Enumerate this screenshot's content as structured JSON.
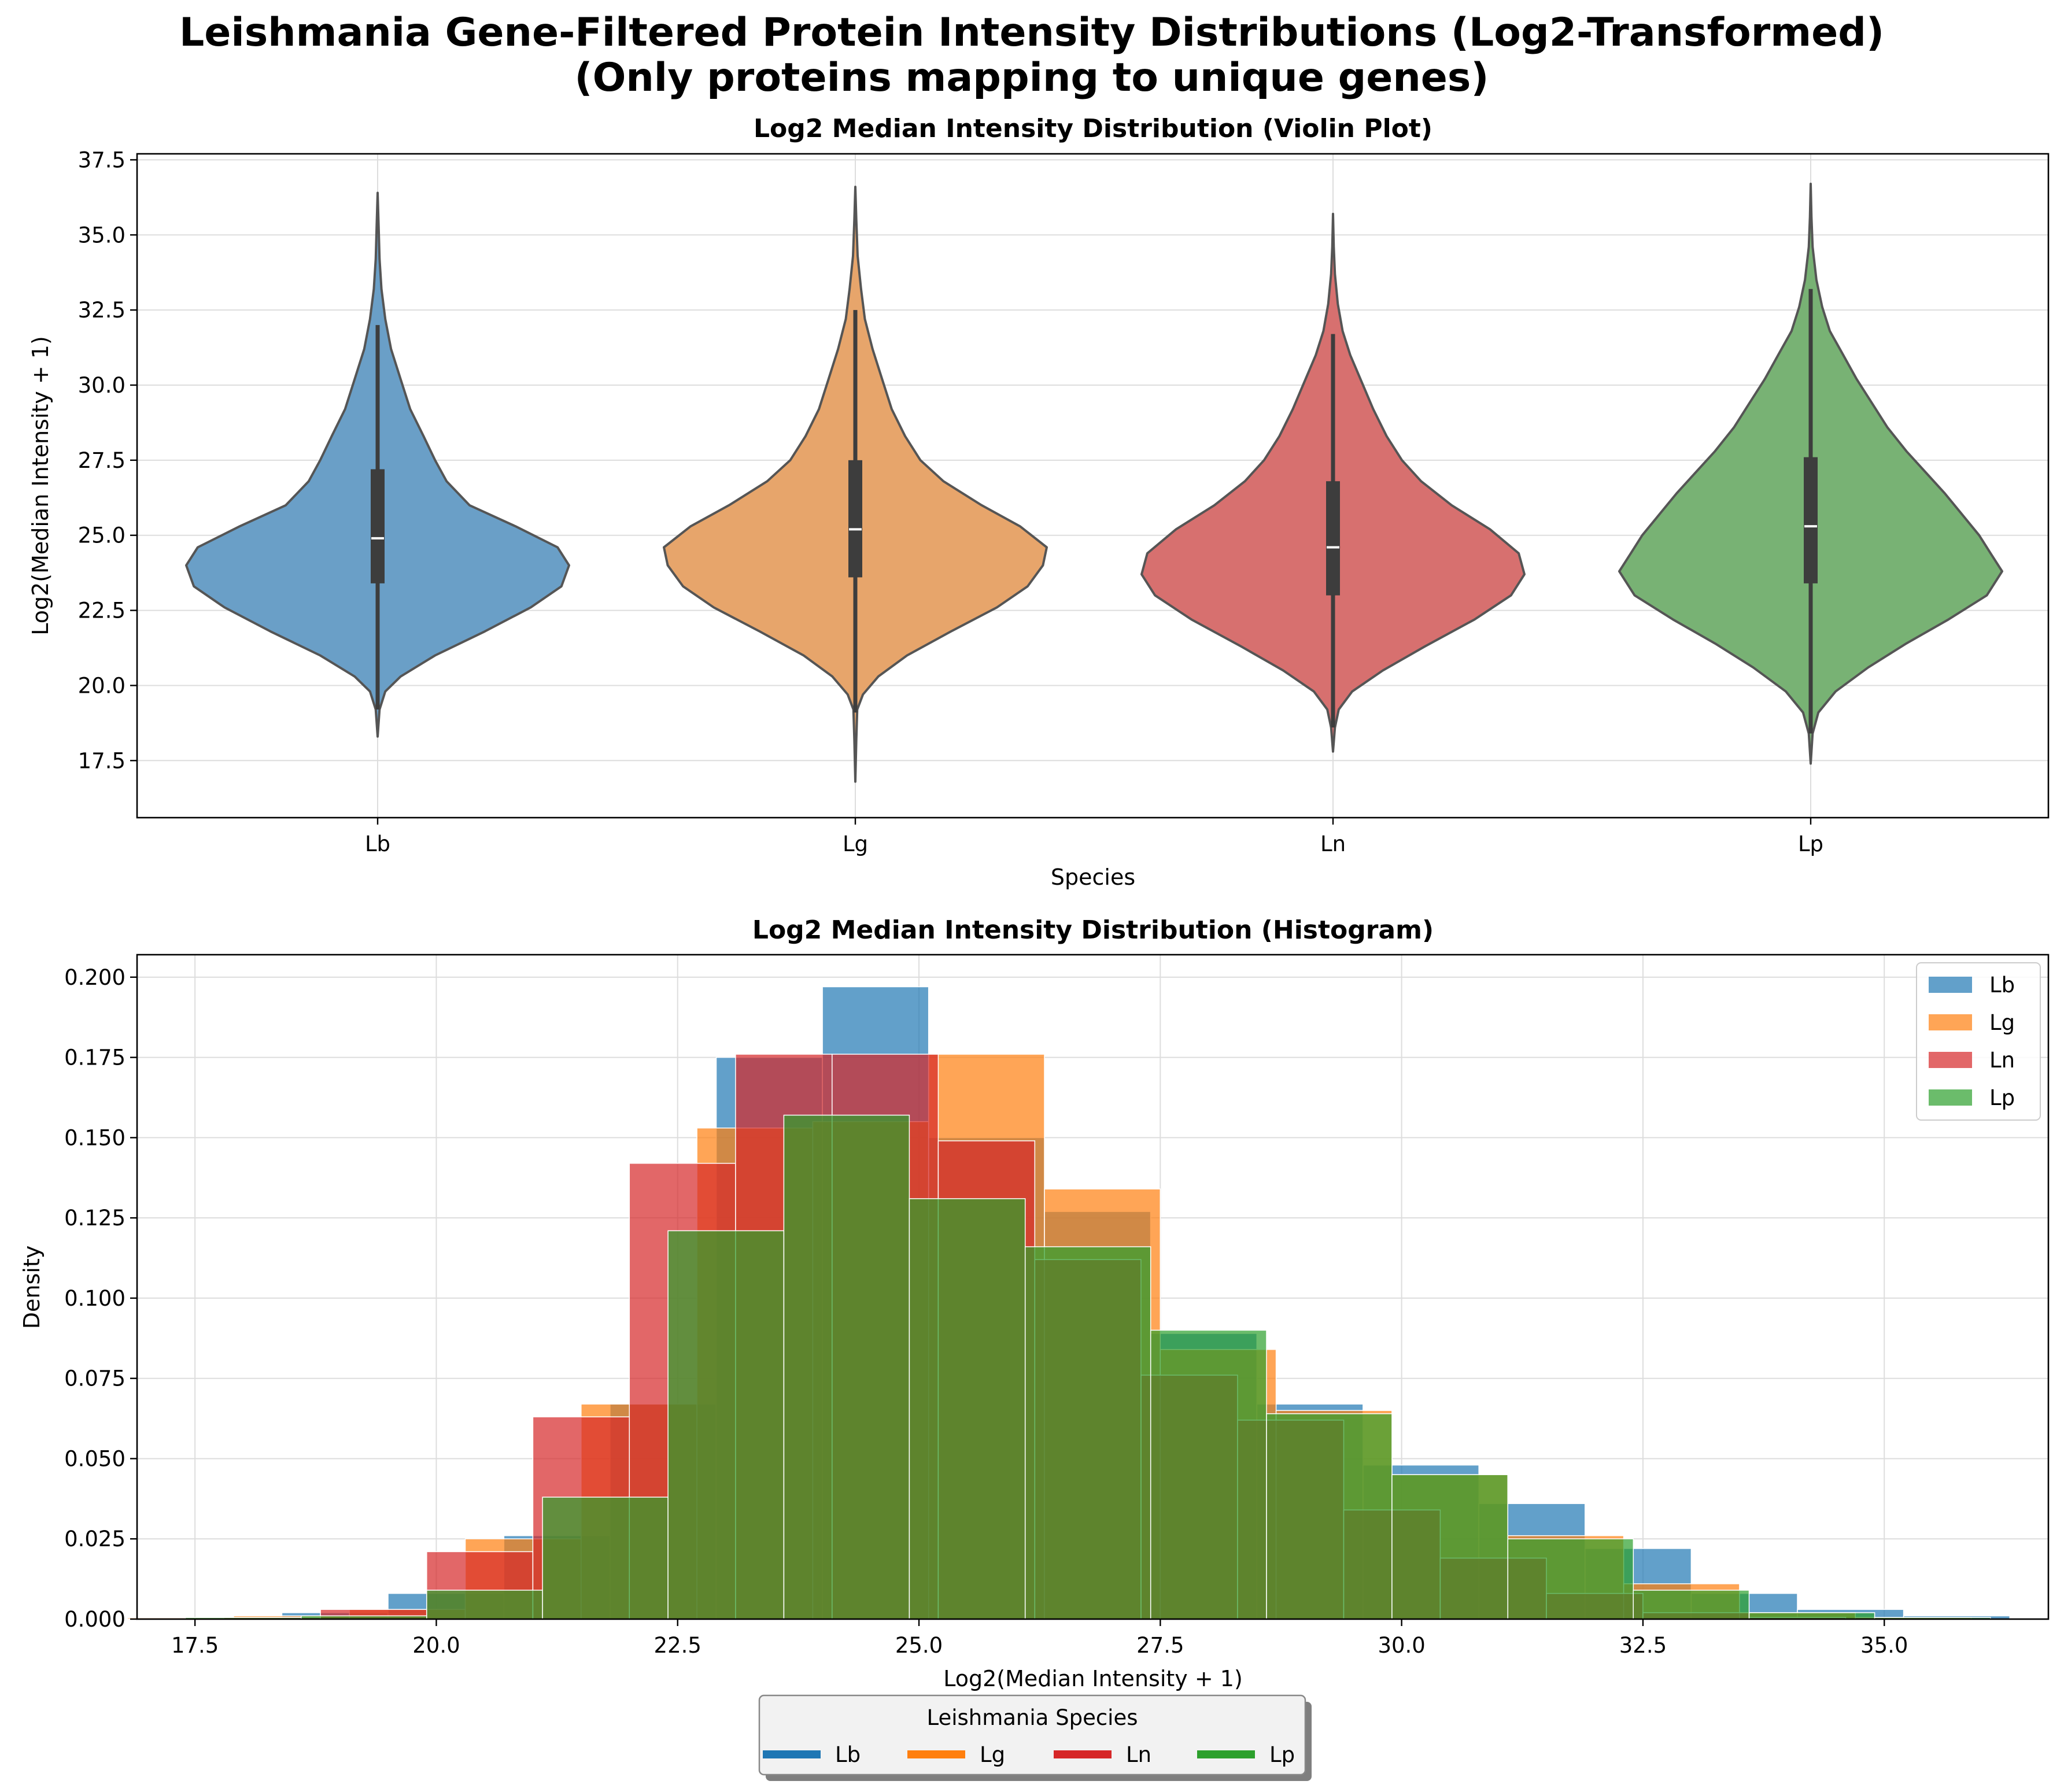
{
  "figure": {
    "title_line1": "Leishmania Gene-Filtered Protein Intensity Distributions (Log2-Transformed)",
    "title_line2": "(Only proteins mapping to unique genes)"
  },
  "colors": {
    "Lb": "#1f77b4",
    "Lg": "#ff7f0e",
    "Ln": "#d62728",
    "Lp": "#2ca02c"
  },
  "legend_bottom": {
    "title": "Leishmania Species",
    "entries": [
      "Lb",
      "Lg",
      "Ln",
      "Lp"
    ]
  },
  "chart_data": [
    {
      "type": "violin",
      "title": "Log2 Median Intensity Distribution (Violin Plot)",
      "xlabel": "Species",
      "ylabel": "Log2(Median Intensity + 1)",
      "ylim": [
        15.6,
        37.7
      ],
      "yticks": [
        "17.5",
        "20.0",
        "22.5",
        "25.0",
        "27.5",
        "30.0",
        "32.5",
        "35.0",
        "37.5"
      ],
      "grid": true,
      "categories": [
        "Lb",
        "Lg",
        "Ln",
        "Lp"
      ],
      "series": [
        {
          "name": "Lb",
          "min": 18.3,
          "max": 36.4,
          "median": 24.9,
          "q1": 23.4,
          "q3": 27.2,
          "whisker_low": 19.2,
          "whisker_high": 32.0,
          "profile": [
            [
              18.3,
              0.0
            ],
            [
              19.2,
              0.01
            ],
            [
              19.8,
              0.04
            ],
            [
              20.3,
              0.12
            ],
            [
              21,
              0.3
            ],
            [
              21.8,
              0.56
            ],
            [
              22.6,
              0.8
            ],
            [
              23.3,
              0.96
            ],
            [
              24,
              1.0
            ],
            [
              24.6,
              0.94
            ],
            [
              25.3,
              0.72
            ],
            [
              26,
              0.48
            ],
            [
              26.8,
              0.36
            ],
            [
              27.5,
              0.3
            ],
            [
              28.3,
              0.24
            ],
            [
              29.2,
              0.17
            ],
            [
              30.2,
              0.12
            ],
            [
              31.2,
              0.07
            ],
            [
              32.2,
              0.04
            ],
            [
              33.2,
              0.02
            ],
            [
              34.2,
              0.01
            ],
            [
              35.3,
              0.005
            ],
            [
              36.4,
              0.0
            ]
          ]
        },
        {
          "name": "Lg",
          "min": 16.8,
          "max": 36.6,
          "median": 25.2,
          "q1": 23.6,
          "q3": 27.5,
          "whisker_low": 19.1,
          "whisker_high": 32.5,
          "profile": [
            [
              16.8,
              0.0
            ],
            [
              18.2,
              0.005
            ],
            [
              19.2,
              0.01
            ],
            [
              19.7,
              0.04
            ],
            [
              20.3,
              0.12
            ],
            [
              21,
              0.27
            ],
            [
              21.8,
              0.5
            ],
            [
              22.6,
              0.74
            ],
            [
              23.3,
              0.9
            ],
            [
              24,
              0.98
            ],
            [
              24.6,
              1.0
            ],
            [
              25.3,
              0.86
            ],
            [
              26,
              0.66
            ],
            [
              26.8,
              0.46
            ],
            [
              27.5,
              0.34
            ],
            [
              28.3,
              0.26
            ],
            [
              29.2,
              0.19
            ],
            [
              30.2,
              0.14
            ],
            [
              31.2,
              0.09
            ],
            [
              32.2,
              0.05
            ],
            [
              33.2,
              0.03
            ],
            [
              34.3,
              0.012
            ],
            [
              35.5,
              0.005
            ],
            [
              36.6,
              0.0
            ]
          ]
        },
        {
          "name": "Ln",
          "min": 17.8,
          "max": 35.7,
          "median": 24.6,
          "q1": 23.0,
          "q3": 26.8,
          "whisker_low": 18.6,
          "whisker_high": 31.7,
          "profile": [
            [
              17.8,
              0.0
            ],
            [
              18.6,
              0.01
            ],
            [
              19.2,
              0.03
            ],
            [
              19.8,
              0.1
            ],
            [
              20.5,
              0.26
            ],
            [
              21.3,
              0.48
            ],
            [
              22.2,
              0.74
            ],
            [
              23,
              0.93
            ],
            [
              23.7,
              1.0
            ],
            [
              24.4,
              0.97
            ],
            [
              25.2,
              0.82
            ],
            [
              26,
              0.62
            ],
            [
              26.8,
              0.46
            ],
            [
              27.5,
              0.36
            ],
            [
              28.3,
              0.28
            ],
            [
              29.2,
              0.21
            ],
            [
              30.1,
              0.15
            ],
            [
              31,
              0.09
            ],
            [
              31.8,
              0.05
            ],
            [
              32.7,
              0.025
            ],
            [
              33.7,
              0.01
            ],
            [
              34.6,
              0.004
            ],
            [
              35.7,
              0.0
            ]
          ]
        },
        {
          "name": "Lp",
          "min": 17.4,
          "max": 36.7,
          "median": 25.3,
          "q1": 23.4,
          "q3": 27.6,
          "whisker_low": 18.4,
          "whisker_high": 33.2,
          "profile": [
            [
              17.4,
              0.0
            ],
            [
              18.4,
              0.01
            ],
            [
              19.1,
              0.04
            ],
            [
              19.8,
              0.13
            ],
            [
              20.6,
              0.3
            ],
            [
              21.4,
              0.5
            ],
            [
              22.2,
              0.72
            ],
            [
              23,
              0.92
            ],
            [
              23.8,
              1.0
            ],
            [
              24.4,
              0.94
            ],
            [
              25,
              0.88
            ],
            [
              25.7,
              0.79
            ],
            [
              26.4,
              0.7
            ],
            [
              27.1,
              0.6
            ],
            [
              27.8,
              0.5
            ],
            [
              28.6,
              0.4
            ],
            [
              29.4,
              0.32
            ],
            [
              30.2,
              0.24
            ],
            [
              31,
              0.17
            ],
            [
              31.8,
              0.1
            ],
            [
              32.6,
              0.06
            ],
            [
              33.5,
              0.03
            ],
            [
              34.6,
              0.01
            ],
            [
              35.6,
              0.004
            ],
            [
              36.7,
              0.0
            ]
          ]
        }
      ]
    },
    {
      "type": "histogram",
      "title": "Log2 Median Intensity Distribution (Histogram)",
      "xlabel": "Log2(Median Intensity + 1)",
      "ylabel": "Density",
      "xlim": [
        16.9,
        36.7
      ],
      "ylim": [
        0,
        0.207
      ],
      "xticks": [
        "17.5",
        "20.0",
        "22.5",
        "25.0",
        "27.5",
        "30.0",
        "32.5",
        "35.0"
      ],
      "yticks": [
        "0.000",
        "0.025",
        "0.050",
        "0.075",
        "0.100",
        "0.125",
        "0.150",
        "0.175",
        "0.200"
      ],
      "grid": true,
      "legend_placement": "top-right",
      "series": [
        {
          "name": "Lb",
          "bins": [
            [
              18.4,
              19.5,
              0.002
            ],
            [
              19.5,
              20.7,
              0.008
            ],
            [
              20.7,
              21.8,
              0.026
            ],
            [
              21.8,
              22.9,
              0.067
            ],
            [
              22.9,
              24.0,
              0.175
            ],
            [
              24.0,
              25.1,
              0.197
            ],
            [
              25.1,
              26.3,
              0.15
            ],
            [
              26.3,
              27.4,
              0.127
            ],
            [
              27.4,
              28.5,
              0.089
            ],
            [
              28.5,
              29.6,
              0.067
            ],
            [
              29.6,
              30.8,
              0.048
            ],
            [
              30.8,
              31.9,
              0.036
            ],
            [
              31.9,
              33.0,
              0.022
            ],
            [
              33.0,
              34.1,
              0.008
            ],
            [
              34.1,
              35.2,
              0.003
            ],
            [
              35.2,
              36.3,
              0.001
            ]
          ]
        },
        {
          "name": "Lg",
          "bins": [
            [
              16.8,
              17.9,
              0.0004
            ],
            [
              17.9,
              19.1,
              0.001
            ],
            [
              19.1,
              20.3,
              0.003
            ],
            [
              20.3,
              21.5,
              0.025
            ],
            [
              21.5,
              22.7,
              0.067
            ],
            [
              22.7,
              23.9,
              0.153
            ],
            [
              23.9,
              25.1,
              0.155
            ],
            [
              25.1,
              26.3,
              0.176
            ],
            [
              26.3,
              27.5,
              0.134
            ],
            [
              27.5,
              28.7,
              0.084
            ],
            [
              28.7,
              29.9,
              0.065
            ],
            [
              29.9,
              31.1,
              0.045
            ],
            [
              31.1,
              32.3,
              0.026
            ],
            [
              32.3,
              33.5,
              0.011
            ],
            [
              33.5,
              34.7,
              0.002
            ],
            [
              34.7,
              35.9,
              0.0005
            ]
          ]
        },
        {
          "name": "Ln",
          "bins": [
            [
              17.8,
              18.8,
              0.0005
            ],
            [
              18.8,
              19.9,
              0.003
            ],
            [
              19.9,
              21.0,
              0.021
            ],
            [
              21.0,
              22.0,
              0.063
            ],
            [
              22.0,
              23.1,
              0.142
            ],
            [
              23.1,
              24.1,
              0.176
            ],
            [
              24.1,
              25.2,
              0.176
            ],
            [
              25.2,
              26.2,
              0.149
            ],
            [
              26.2,
              27.3,
              0.112
            ],
            [
              27.3,
              28.3,
              0.076
            ],
            [
              28.3,
              29.4,
              0.062
            ],
            [
              29.4,
              30.4,
              0.034
            ],
            [
              30.4,
              31.5,
              0.019
            ],
            [
              31.5,
              32.5,
              0.008
            ],
            [
              32.5,
              33.6,
              0.002
            ],
            [
              33.6,
              34.6,
              0.0005
            ]
          ]
        },
        {
          "name": "Lp",
          "bins": [
            [
              17.4,
              18.6,
              0.0005
            ],
            [
              18.6,
              19.9,
              0.001
            ],
            [
              19.9,
              21.1,
              0.009
            ],
            [
              21.1,
              22.4,
              0.038
            ],
            [
              22.4,
              23.6,
              0.121
            ],
            [
              23.6,
              24.9,
              0.157
            ],
            [
              24.9,
              26.1,
              0.131
            ],
            [
              26.1,
              27.4,
              0.116
            ],
            [
              27.4,
              28.6,
              0.09
            ],
            [
              28.6,
              29.9,
              0.064
            ],
            [
              29.9,
              31.1,
              0.045
            ],
            [
              31.1,
              32.4,
              0.025
            ],
            [
              32.4,
              33.6,
              0.009
            ],
            [
              33.6,
              34.9,
              0.002
            ],
            [
              34.9,
              36.1,
              0.0005
            ]
          ]
        }
      ]
    }
  ]
}
